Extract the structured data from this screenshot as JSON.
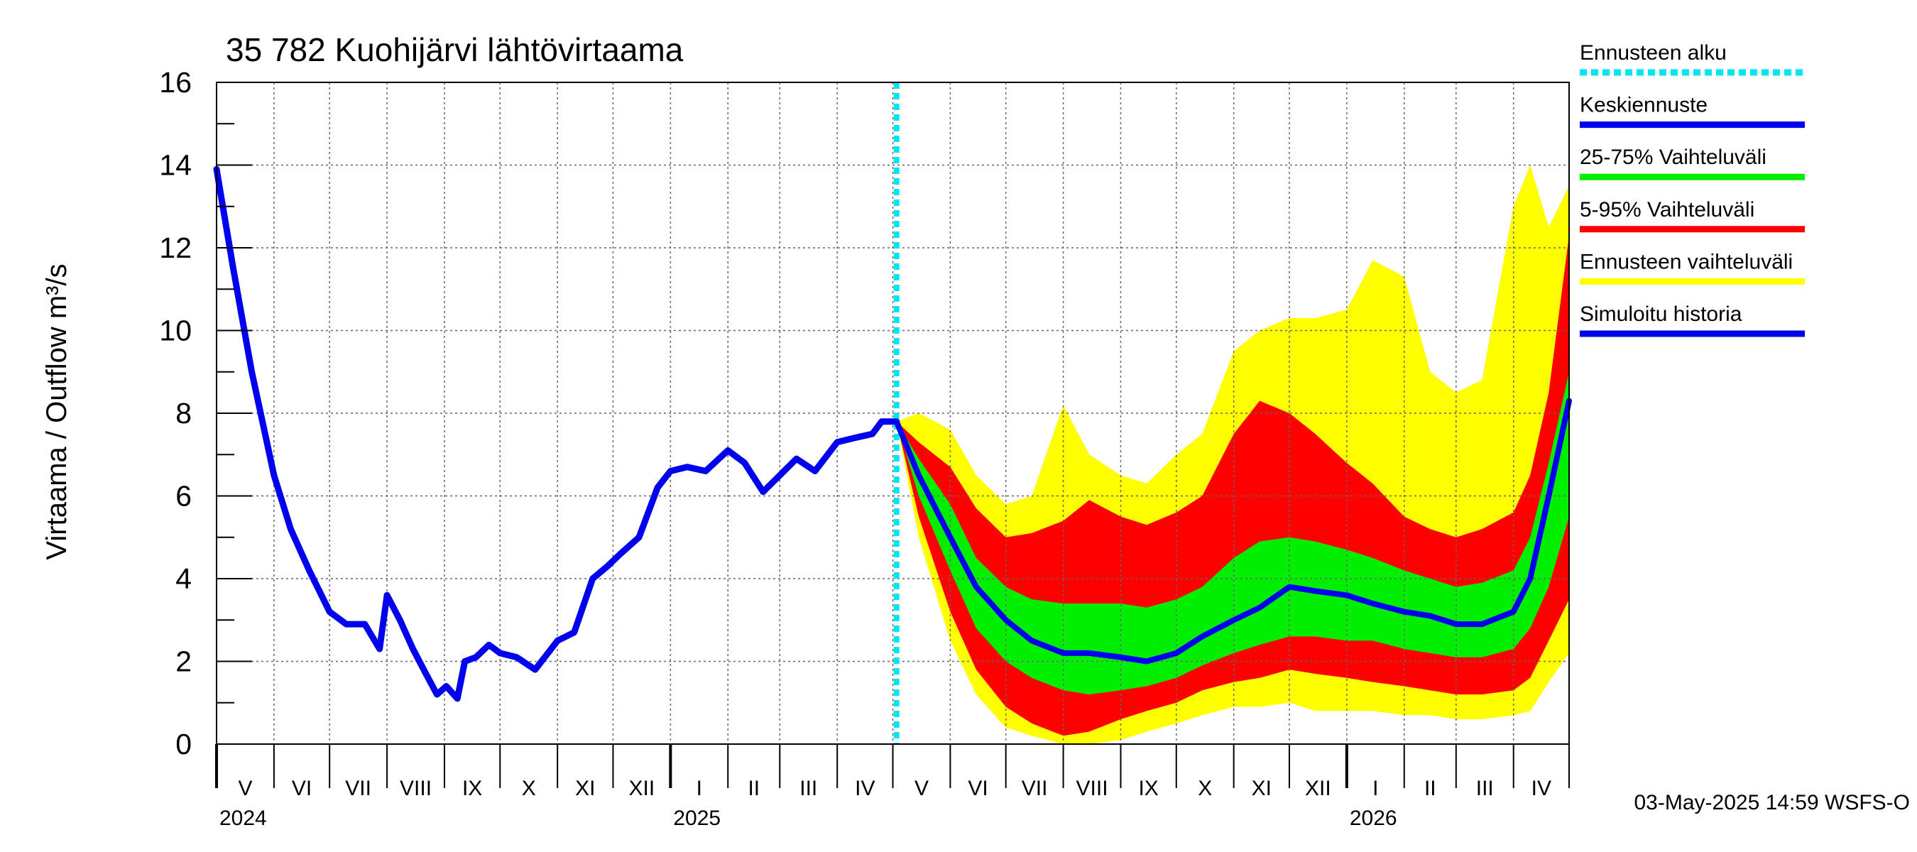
{
  "chart_data": {
    "type": "area",
    "title": "35 782 Kuohijärvi lähtövirtaama",
    "ylabel": "Virtaama / Outflow     m³/s",
    "xlabel": "",
    "ylim": [
      0,
      16
    ],
    "yticks": [
      0,
      2,
      4,
      6,
      8,
      10,
      12,
      14,
      16
    ],
    "xlim": [
      "2024-05-01",
      "2026-05-01"
    ],
    "grid": true,
    "legend_position": "right",
    "forecast_start": "2025-05-03",
    "timestamp": "03-May-2025 14:59 WSFS-O",
    "months": [
      {
        "label": "V",
        "start": "2024-05-01"
      },
      {
        "label": "VI",
        "start": "2024-06-01"
      },
      {
        "label": "VII",
        "start": "2024-07-01"
      },
      {
        "label": "VIII",
        "start": "2024-08-01"
      },
      {
        "label": "IX",
        "start": "2024-09-01"
      },
      {
        "label": "X",
        "start": "2024-10-01"
      },
      {
        "label": "XI",
        "start": "2024-11-01"
      },
      {
        "label": "XII",
        "start": "2024-12-01"
      },
      {
        "label": "I",
        "start": "2025-01-01"
      },
      {
        "label": "II",
        "start": "2025-02-01"
      },
      {
        "label": "III",
        "start": "2025-03-01"
      },
      {
        "label": "IV",
        "start": "2025-04-01"
      },
      {
        "label": "V",
        "start": "2025-05-01"
      },
      {
        "label": "VI",
        "start": "2025-06-01"
      },
      {
        "label": "VII",
        "start": "2025-07-01"
      },
      {
        "label": "VIII",
        "start": "2025-08-01"
      },
      {
        "label": "IX",
        "start": "2025-09-01"
      },
      {
        "label": "X",
        "start": "2025-10-01"
      },
      {
        "label": "XI",
        "start": "2025-11-01"
      },
      {
        "label": "XII",
        "start": "2025-12-01"
      },
      {
        "label": "I",
        "start": "2026-01-01"
      },
      {
        "label": "II",
        "start": "2026-02-01"
      },
      {
        "label": "III",
        "start": "2026-03-01"
      },
      {
        "label": "IV",
        "start": "2026-04-01"
      }
    ],
    "years": [
      {
        "label": "2024",
        "at": "2024-05-01"
      },
      {
        "label": "2025",
        "at": "2025-01-01"
      },
      {
        "label": "2026",
        "at": "2026-01-01"
      }
    ],
    "legend": [
      {
        "label": "Ennusteen alku",
        "color": "#00e5ee",
        "style": "dashed"
      },
      {
        "label": "Keskiennuste",
        "color": "#0000ee",
        "style": "line"
      },
      {
        "label": "25-75% Vaihteluväli",
        "color": "#00ee00",
        "style": "line"
      },
      {
        "label": "5-95% Vaihteluväli",
        "color": "#ff0000",
        "style": "line"
      },
      {
        "label": "Ennusteen vaihteluväli",
        "color": "#ffff00",
        "style": "line"
      },
      {
        "label": "Simuloitu historia",
        "color": "#0000ee",
        "style": "line"
      }
    ],
    "history": {
      "name": "Simuloitu historia",
      "color": "#0000ee",
      "x": [
        "2024-05-01",
        "2024-05-10",
        "2024-05-20",
        "2024-06-01",
        "2024-06-10",
        "2024-06-20",
        "2024-07-01",
        "2024-07-10",
        "2024-07-20",
        "2024-07-28",
        "2024-08-01",
        "2024-08-08",
        "2024-08-15",
        "2024-08-22",
        "2024-08-28",
        "2024-09-02",
        "2024-09-08",
        "2024-09-12",
        "2024-09-18",
        "2024-09-25",
        "2024-10-01",
        "2024-10-10",
        "2024-10-20",
        "2024-11-01",
        "2024-11-10",
        "2024-11-20",
        "2024-11-28",
        "2024-12-05",
        "2024-12-15",
        "2024-12-25",
        "2025-01-01",
        "2025-01-10",
        "2025-01-20",
        "2025-02-01",
        "2025-02-10",
        "2025-02-20",
        "2025-03-01",
        "2025-03-10",
        "2025-03-20",
        "2025-04-01",
        "2025-04-10",
        "2025-04-20",
        "2025-04-25",
        "2025-05-03"
      ],
      "y": [
        13.9,
        11.5,
        9.0,
        6.5,
        5.2,
        4.2,
        3.2,
        2.9,
        2.9,
        2.3,
        3.6,
        3.0,
        2.3,
        1.7,
        1.2,
        1.4,
        1.1,
        2.0,
        2.1,
        2.4,
        2.2,
        2.1,
        1.8,
        2.5,
        2.7,
        4.0,
        4.3,
        4.6,
        5.0,
        6.2,
        6.6,
        6.7,
        6.6,
        7.1,
        6.8,
        6.1,
        6.5,
        6.9,
        6.6,
        7.3,
        7.4,
        7.5,
        7.8,
        7.8
      ]
    },
    "forecast": {
      "x": [
        "2025-05-03",
        "2025-05-15",
        "2025-06-01",
        "2025-06-15",
        "2025-07-01",
        "2025-07-15",
        "2025-08-01",
        "2025-08-15",
        "2025-09-01",
        "2025-09-15",
        "2025-10-01",
        "2025-10-15",
        "2025-11-01",
        "2025-11-15",
        "2025-12-01",
        "2025-12-15",
        "2026-01-01",
        "2026-01-15",
        "2026-02-01",
        "2026-02-15",
        "2026-03-01",
        "2026-03-15",
        "2026-04-01",
        "2026-04-10",
        "2026-04-20",
        "2026-05-01"
      ],
      "median": [
        7.8,
        6.5,
        5.0,
        3.8,
        3.0,
        2.5,
        2.2,
        2.2,
        2.1,
        2.0,
        2.2,
        2.6,
        3.0,
        3.3,
        3.8,
        3.7,
        3.6,
        3.4,
        3.2,
        3.1,
        2.9,
        2.9,
        3.2,
        4.0,
        6.0,
        8.3
      ],
      "p25": [
        7.8,
        6.0,
        4.2,
        2.8,
        2.0,
        1.6,
        1.3,
        1.2,
        1.3,
        1.4,
        1.6,
        1.9,
        2.2,
        2.4,
        2.6,
        2.6,
        2.5,
        2.5,
        2.3,
        2.2,
        2.1,
        2.1,
        2.3,
        2.8,
        3.8,
        5.5
      ],
      "p75": [
        7.8,
        6.9,
        5.8,
        4.5,
        3.8,
        3.5,
        3.4,
        3.4,
        3.4,
        3.3,
        3.5,
        3.8,
        4.5,
        4.9,
        5.0,
        4.9,
        4.7,
        4.5,
        4.2,
        4.0,
        3.8,
        3.9,
        4.2,
        5.0,
        6.8,
        9.0
      ],
      "p05": [
        7.8,
        5.5,
        3.2,
        1.8,
        0.9,
        0.5,
        0.2,
        0.3,
        0.6,
        0.8,
        1.0,
        1.3,
        1.5,
        1.6,
        1.8,
        1.7,
        1.6,
        1.5,
        1.4,
        1.3,
        1.2,
        1.2,
        1.3,
        1.6,
        2.5,
        3.5
      ],
      "p95": [
        7.8,
        7.3,
        6.7,
        5.7,
        5.0,
        5.1,
        5.4,
        5.9,
        5.5,
        5.3,
        5.6,
        6.0,
        7.5,
        8.3,
        8.0,
        7.5,
        6.8,
        6.3,
        5.5,
        5.2,
        5.0,
        5.2,
        5.6,
        6.5,
        8.5,
        12.3
      ],
      "min": [
        7.8,
        5.0,
        2.5,
        1.2,
        0.4,
        0.2,
        0.0,
        0.0,
        0.1,
        0.3,
        0.5,
        0.7,
        0.9,
        0.9,
        1.0,
        0.8,
        0.8,
        0.8,
        0.7,
        0.7,
        0.6,
        0.6,
        0.7,
        0.8,
        1.5,
        2.2
      ],
      "max": [
        7.8,
        8.0,
        7.6,
        6.5,
        5.8,
        6.0,
        8.2,
        7.0,
        6.5,
        6.3,
        7.0,
        7.5,
        9.5,
        10.0,
        10.3,
        10.3,
        10.5,
        11.7,
        11.3,
        9.0,
        8.5,
        8.8,
        13.0,
        14.0,
        12.5,
        13.5
      ]
    }
  }
}
